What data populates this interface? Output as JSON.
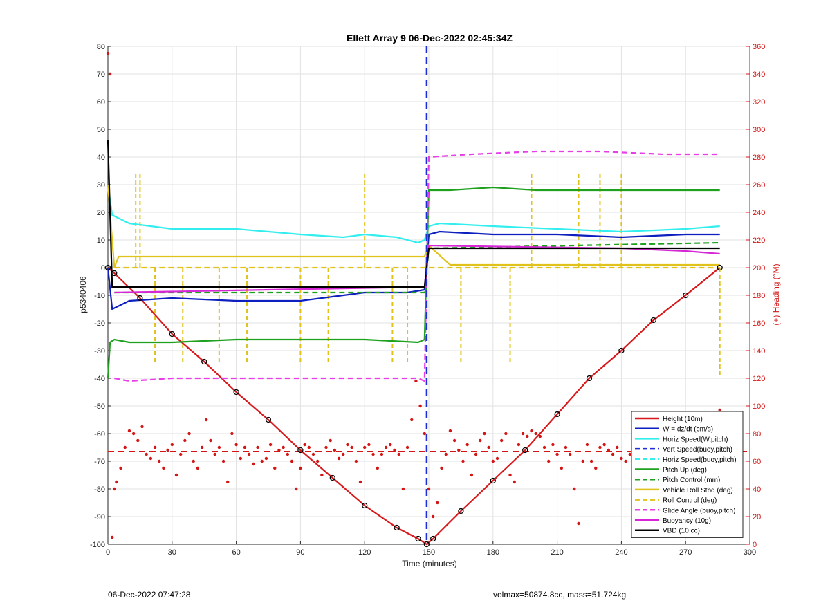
{
  "footer": {
    "timestamp": "06-Dec-2022 07:47:28",
    "stats": "volmax=50874.8cc, mass=51.724kg"
  },
  "colors": {
    "height": "#d7191c",
    "w": "#0d1fbf",
    "horiz_speed": "#33eeee",
    "vert_speed_model": "#1f2fd8",
    "pitch": "#1fa11f",
    "roll": "#e0c21a",
    "glide": "#e83ee8",
    "buoyancy": "#d626d6",
    "vbd": "#000000",
    "heading": "#d41515"
  },
  "chart_data": {
    "type": "line",
    "title": "Ellett Array 9 06-Dec-2022 02:45:34Z",
    "xlabel": "Time (minutes)",
    "ylabel": "p5340406",
    "ylabel_right": "(+) Heading (°M)",
    "xlim": [
      0,
      300
    ],
    "ylim": [
      -100,
      80
    ],
    "ylim_right": [
      0,
      360
    ],
    "xticks": [
      0,
      30,
      60,
      90,
      120,
      150,
      180,
      210,
      240,
      270,
      300
    ],
    "yticks": [
      -100,
      -90,
      -80,
      -70,
      -60,
      -50,
      -40,
      -30,
      -20,
      -10,
      0,
      10,
      20,
      30,
      40,
      50,
      60,
      70,
      80
    ],
    "yticks_right": [
      0,
      20,
      40,
      60,
      80,
      100,
      120,
      140,
      160,
      180,
      200,
      220,
      240,
      260,
      280,
      300,
      320,
      340,
      360
    ],
    "grid": true,
    "legend_position": "bottom-right",
    "vertical_marker_x": 149,
    "series": [
      {
        "name": "Height (10m)",
        "style": "solid",
        "x": [
          0,
          3,
          15,
          30,
          45,
          60,
          75,
          90,
          105,
          120,
          135,
          145,
          149,
          152,
          165,
          180,
          195,
          210,
          225,
          240,
          255,
          270,
          286
        ],
        "y": [
          0,
          -2,
          -11,
          -24,
          -34,
          -45,
          -55,
          -66,
          -76,
          -86,
          -94,
          -98,
          -100,
          -98,
          -88,
          -77,
          -66,
          -53,
          -40,
          -30,
          -19,
          -10,
          0
        ]
      },
      {
        "name": "W = dz/dt (cm/s)",
        "style": "solid",
        "x": [
          0,
          2,
          10,
          30,
          60,
          90,
          120,
          140,
          148,
          150,
          155,
          180,
          210,
          240,
          270,
          286
        ],
        "y": [
          0,
          -15,
          -12,
          -11,
          -12,
          -12,
          -9,
          -9,
          -8,
          12,
          13,
          12,
          12,
          11,
          12,
          12
        ]
      },
      {
        "name": "Horiz Speed(W,pitch)",
        "style": "solid",
        "x": [
          0,
          2,
          10,
          30,
          60,
          90,
          110,
          120,
          135,
          145,
          148,
          150,
          155,
          180,
          210,
          240,
          270,
          286
        ],
        "y": [
          30,
          19,
          16,
          14,
          14,
          12,
          11,
          12,
          11,
          9,
          10,
          15,
          16,
          15,
          14,
          13,
          14,
          15
        ]
      },
      {
        "name": "Vert Speed(buoy,pitch)",
        "style": "dashed"
      },
      {
        "name": "Horiz Speed(buoy,pitch)",
        "style": "dashed"
      },
      {
        "name": "Pitch Up (deg)",
        "style": "solid",
        "x": [
          0,
          1,
          3,
          10,
          30,
          60,
          90,
          120,
          145,
          148,
          150,
          160,
          180,
          200,
          230,
          250,
          286
        ],
        "y": [
          -40,
          -27,
          -26,
          -27,
          -27,
          -26,
          -26,
          -26,
          -27,
          -26,
          28,
          28,
          29,
          28,
          28,
          28,
          28
        ]
      },
      {
        "name": "Pitch Control (mm)",
        "style": "dashed",
        "x": [
          3,
          148,
          150,
          286
        ],
        "y": [
          -9,
          -9,
          7,
          9
        ]
      },
      {
        "name": "Vehicle Roll Stbd (deg)",
        "style": "solid",
        "x": [
          0,
          3,
          5,
          10,
          30,
          60,
          90,
          120,
          145,
          148,
          150,
          160,
          180,
          210,
          240,
          270,
          286
        ],
        "y": [
          30,
          0,
          4,
          4,
          4,
          4,
          4,
          4,
          4,
          4,
          8,
          1,
          1,
          1,
          1,
          1,
          1
        ]
      },
      {
        "name": "Roll Control (deg)",
        "style": "dashed",
        "x": [
          3,
          148,
          150,
          286
        ],
        "y": [
          0,
          0,
          0,
          0
        ]
      },
      {
        "name": "Glide Angle (buoy,pitch)",
        "style": "dashed",
        "x": [
          3,
          10,
          30,
          60,
          90,
          120,
          145,
          148,
          150,
          170,
          200,
          230,
          260,
          286
        ],
        "y": [
          -40,
          -41,
          -40,
          -40,
          -40,
          -40,
          -40,
          -41,
          40,
          41,
          42,
          42,
          41,
          41
        ]
      },
      {
        "name": "Buoyancy (10g)",
        "style": "solid",
        "x": [
          3,
          148,
          150,
          240,
          270,
          286
        ],
        "y": [
          -9,
          -7,
          8,
          7,
          6,
          5
        ]
      },
      {
        "name": "VBD (10 cc)",
        "style": "solid",
        "x": [
          0,
          2,
          3,
          148,
          150,
          286
        ],
        "y": [
          46,
          -7,
          -7,
          -7,
          7,
          7
        ]
      }
    ],
    "roll_control_spikes": [
      {
        "x": 13,
        "y": 35
      },
      {
        "x": 15,
        "y": 35
      },
      {
        "x": 22,
        "y": -34
      },
      {
        "x": 35,
        "y": -34
      },
      {
        "x": 52,
        "y": -34
      },
      {
        "x": 65,
        "y": -34
      },
      {
        "x": 90,
        "y": -34
      },
      {
        "x": 103,
        "y": -34
      },
      {
        "x": 120,
        "y": 35
      },
      {
        "x": 133,
        "y": -34
      },
      {
        "x": 140,
        "y": -34
      },
      {
        "x": 165,
        "y": -34
      },
      {
        "x": 188,
        "y": -34
      },
      {
        "x": 198,
        "y": 35
      },
      {
        "x": 220,
        "y": 35
      },
      {
        "x": 230,
        "y": 35
      },
      {
        "x": 240,
        "y": 35
      },
      {
        "x": 286,
        "y": -40
      }
    ],
    "heading_series": {
      "name": "Heading",
      "axis": "right",
      "mean": 67,
      "x": [
        0,
        1,
        2,
        3,
        4,
        6,
        8,
        10,
        12,
        14,
        16,
        18,
        20,
        22,
        24,
        26,
        28,
        30,
        32,
        34,
        36,
        38,
        40,
        42,
        44,
        46,
        48,
        50,
        52,
        54,
        56,
        58,
        60,
        62,
        64,
        66,
        68,
        70,
        72,
        74,
        76,
        78,
        80,
        82,
        84,
        86,
        88,
        90,
        92,
        94,
        96,
        98,
        100,
        102,
        104,
        106,
        108,
        110,
        112,
        114,
        116,
        118,
        120,
        122,
        124,
        126,
        128,
        130,
        132,
        134,
        136,
        138,
        140,
        142,
        144,
        146,
        148,
        150,
        152,
        154,
        156,
        158,
        160,
        162,
        164,
        166,
        168,
        170,
        172,
        174,
        176,
        178,
        180,
        182,
        184,
        186,
        188,
        190,
        192,
        194,
        196,
        198,
        200,
        202,
        204,
        206,
        208,
        210,
        212,
        214,
        216,
        218,
        220,
        222,
        224,
        226,
        228,
        230,
        232,
        234,
        236,
        238,
        240,
        242,
        244,
        246,
        248,
        250,
        252,
        254,
        256,
        258,
        260,
        262,
        264,
        266,
        268,
        270,
        272,
        274,
        276,
        278,
        280,
        282,
        284,
        286
      ],
      "y": [
        355,
        340,
        5,
        40,
        45,
        55,
        70,
        82,
        80,
        75,
        85,
        65,
        62,
        70,
        60,
        55,
        68,
        72,
        50,
        65,
        75,
        80,
        60,
        55,
        70,
        90,
        75,
        65,
        70,
        60,
        45,
        80,
        72,
        62,
        70,
        65,
        58,
        70,
        60,
        62,
        72,
        55,
        68,
        70,
        65,
        60,
        40,
        55,
        72,
        70,
        65,
        60,
        50,
        70,
        75,
        68,
        62,
        65,
        72,
        70,
        60,
        45,
        70,
        72,
        65,
        55,
        65,
        70,
        72,
        68,
        65,
        40,
        70,
        90,
        118,
        100,
        80,
        40,
        20,
        30,
        55,
        65,
        82,
        75,
        68,
        60,
        72,
        50,
        65,
        75,
        80,
        70,
        60,
        62,
        75,
        80,
        50,
        45,
        72,
        80,
        78,
        82,
        80,
        78,
        70,
        60,
        72,
        65,
        55,
        70,
        65,
        40,
        15,
        60,
        72,
        60,
        55,
        70,
        72,
        68,
        65,
        70,
        62,
        60,
        65,
        55,
        62,
        58,
        60,
        70,
        65,
        50,
        62,
        72,
        60,
        65,
        70,
        75,
        72,
        65,
        72,
        80,
        78,
        82,
        85,
        97
      ]
    }
  }
}
